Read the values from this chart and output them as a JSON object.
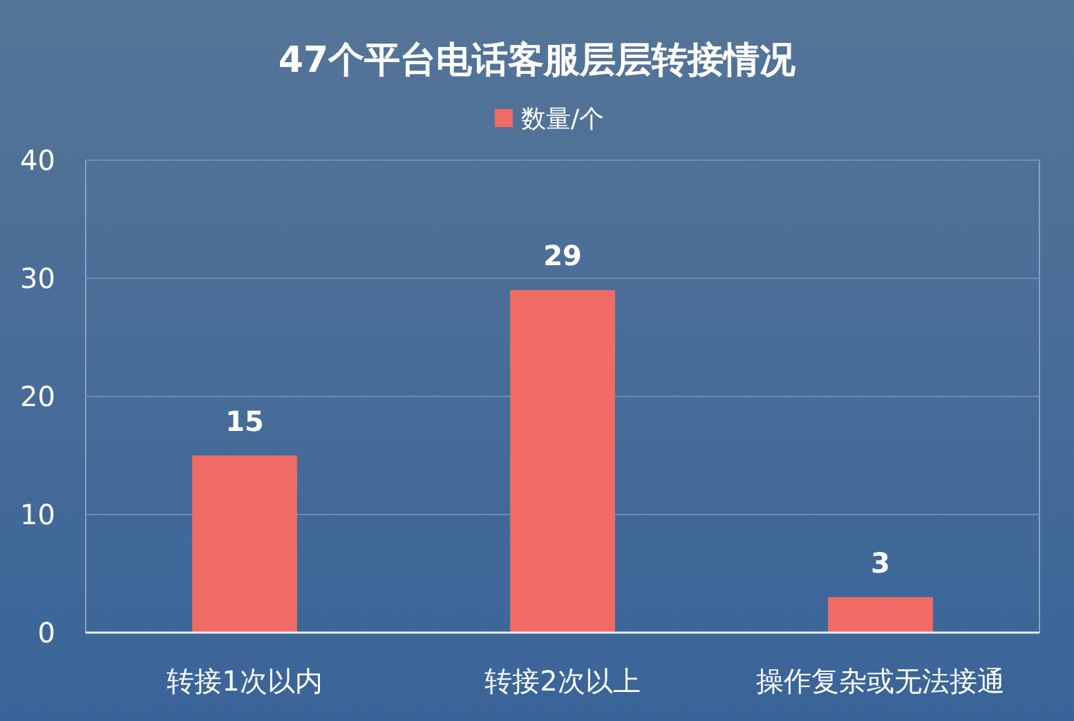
{
  "chart_data": {
    "type": "bar",
    "title": "47个平台电话客服层层转接情况",
    "categories": [
      "转接1次以内",
      "转接2次以上",
      "操作复杂或无法接通"
    ],
    "series": [
      {
        "name": "数量/个",
        "color": "#f06b66",
        "values": [
          15,
          29,
          3
        ]
      }
    ],
    "ylim": [
      0,
      40
    ],
    "yticks": [
      0,
      10,
      20,
      30,
      40
    ],
    "grid": "y",
    "legend": "top",
    "data_labels": true
  }
}
